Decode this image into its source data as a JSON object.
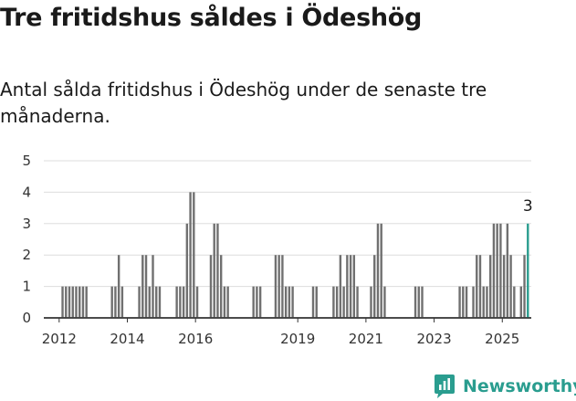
{
  "header": {
    "title": "Tre fritidshus såldes i Ödeshög",
    "subtitle": "Antal sålda fritidshus i Ödeshög under de senaste tre månaderna."
  },
  "brand": {
    "name": "Newsworthy",
    "color": "#2a9d8f"
  },
  "colors": {
    "bar": "#707070",
    "highlight": "#2a9d8f",
    "grid": "#dddddd",
    "axis": "#333333"
  },
  "chart_data": {
    "type": "bar",
    "title": "Tre fritidshus såldes i Ödeshög",
    "subtitle": "Antal sålda fritidshus i Ödeshög under de senaste tre månaderna.",
    "xlabel": "",
    "ylabel": "",
    "ylim": [
      0,
      5
    ],
    "yticks": [
      0,
      1,
      2,
      3,
      4,
      5
    ],
    "xlim": [
      2011.55,
      2025.85
    ],
    "xticks": [
      "2012",
      "2014",
      "2016",
      "2019",
      "2021",
      "2023",
      "2025"
    ],
    "grid": true,
    "legend": "none",
    "highlight_label": "3",
    "series": [
      {
        "points": [
          {
            "x": 2012.1,
            "y": 1
          },
          {
            "x": 2012.2,
            "y": 1
          },
          {
            "x": 2012.3,
            "y": 1
          },
          {
            "x": 2012.4,
            "y": 1
          },
          {
            "x": 2012.5,
            "y": 1
          },
          {
            "x": 2012.6,
            "y": 1
          },
          {
            "x": 2012.7,
            "y": 1
          },
          {
            "x": 2012.8,
            "y": 1
          },
          {
            "x": 2013.55,
            "y": 1
          },
          {
            "x": 2013.65,
            "y": 1
          },
          {
            "x": 2013.75,
            "y": 2
          },
          {
            "x": 2013.85,
            "y": 1
          },
          {
            "x": 2014.35,
            "y": 1
          },
          {
            "x": 2014.45,
            "y": 2
          },
          {
            "x": 2014.55,
            "y": 2
          },
          {
            "x": 2014.65,
            "y": 1
          },
          {
            "x": 2014.75,
            "y": 2
          },
          {
            "x": 2014.85,
            "y": 1
          },
          {
            "x": 2014.95,
            "y": 1
          },
          {
            "x": 2015.45,
            "y": 1
          },
          {
            "x": 2015.55,
            "y": 1
          },
          {
            "x": 2015.65,
            "y": 1
          },
          {
            "x": 2015.75,
            "y": 3
          },
          {
            "x": 2015.85,
            "y": 4
          },
          {
            "x": 2015.95,
            "y": 4
          },
          {
            "x": 2016.05,
            "y": 1
          },
          {
            "x": 2016.45,
            "y": 2
          },
          {
            "x": 2016.55,
            "y": 3
          },
          {
            "x": 2016.65,
            "y": 3
          },
          {
            "x": 2016.75,
            "y": 2
          },
          {
            "x": 2016.85,
            "y": 1
          },
          {
            "x": 2016.95,
            "y": 1
          },
          {
            "x": 2017.7,
            "y": 1
          },
          {
            "x": 2017.8,
            "y": 1
          },
          {
            "x": 2017.9,
            "y": 1
          },
          {
            "x": 2018.35,
            "y": 2
          },
          {
            "x": 2018.45,
            "y": 2
          },
          {
            "x": 2018.55,
            "y": 2
          },
          {
            "x": 2018.65,
            "y": 1
          },
          {
            "x": 2018.75,
            "y": 1
          },
          {
            "x": 2018.85,
            "y": 1
          },
          {
            "x": 2019.45,
            "y": 1
          },
          {
            "x": 2019.55,
            "y": 1
          },
          {
            "x": 2020.05,
            "y": 1
          },
          {
            "x": 2020.15,
            "y": 1
          },
          {
            "x": 2020.25,
            "y": 2
          },
          {
            "x": 2020.35,
            "y": 1
          },
          {
            "x": 2020.45,
            "y": 2
          },
          {
            "x": 2020.55,
            "y": 2
          },
          {
            "x": 2020.65,
            "y": 2
          },
          {
            "x": 2020.75,
            "y": 1
          },
          {
            "x": 2021.15,
            "y": 1
          },
          {
            "x": 2021.25,
            "y": 2
          },
          {
            "x": 2021.35,
            "y": 3
          },
          {
            "x": 2021.45,
            "y": 3
          },
          {
            "x": 2021.55,
            "y": 1
          },
          {
            "x": 2022.45,
            "y": 1
          },
          {
            "x": 2022.55,
            "y": 1
          },
          {
            "x": 2022.65,
            "y": 1
          },
          {
            "x": 2023.75,
            "y": 1
          },
          {
            "x": 2023.85,
            "y": 1
          },
          {
            "x": 2023.95,
            "y": 1
          },
          {
            "x": 2024.15,
            "y": 1
          },
          {
            "x": 2024.25,
            "y": 2
          },
          {
            "x": 2024.35,
            "y": 2
          },
          {
            "x": 2024.45,
            "y": 1
          },
          {
            "x": 2024.55,
            "y": 1
          },
          {
            "x": 2024.65,
            "y": 2
          },
          {
            "x": 2024.75,
            "y": 3
          },
          {
            "x": 2024.85,
            "y": 3
          },
          {
            "x": 2024.95,
            "y": 3
          },
          {
            "x": 2025.05,
            "y": 2
          },
          {
            "x": 2025.15,
            "y": 3
          },
          {
            "x": 2025.25,
            "y": 2
          },
          {
            "x": 2025.35,
            "y": 1
          },
          {
            "x": 2025.55,
            "y": 1
          },
          {
            "x": 2025.65,
            "y": 2
          },
          {
            "x": 2025.75,
            "y": 3,
            "highlight": true
          }
        ]
      }
    ]
  }
}
